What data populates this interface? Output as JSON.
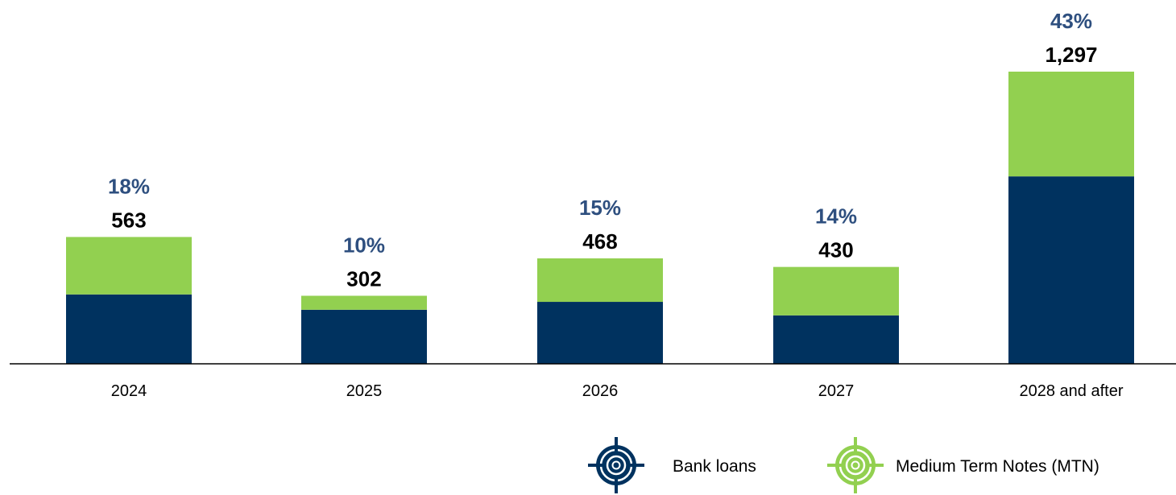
{
  "chart_data": {
    "type": "bar",
    "stacked": true,
    "categories": [
      "2024",
      "2025",
      "2026",
      "2027",
      "2028 and after"
    ],
    "series": [
      {
        "name": "Bank loans",
        "values": [
          308,
          240,
          275,
          215,
          832
        ],
        "color": "#00325f"
      },
      {
        "name": "Medium Term Notes (MTN)",
        "values": [
          255,
          62,
          193,
          215,
          465
        ],
        "color": "#92d050"
      }
    ],
    "totals": [
      "563",
      "302",
      "468",
      "430",
      "1,297"
    ],
    "shares": [
      "18%",
      "10%",
      "15%",
      "14%",
      "43%"
    ],
    "share_color": "#2e4f7f",
    "ylim": [
      0,
      1400
    ],
    "grid": false,
    "legend": {
      "position": "bottom-right",
      "icon": "target-icon"
    },
    "title": "",
    "xlabel": "",
    "ylabel": ""
  }
}
